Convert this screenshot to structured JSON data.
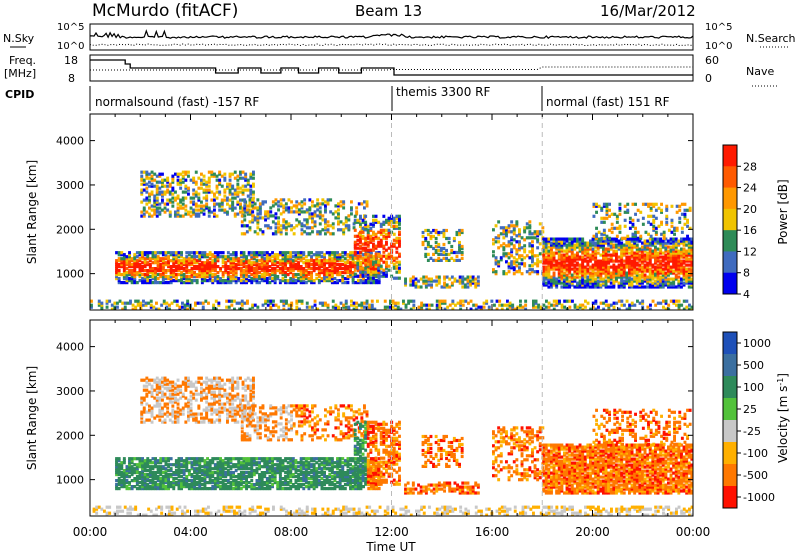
{
  "header": {
    "station": "McMurdo (fitACF)",
    "beam": "Beam 13",
    "date": "16/Mar/2012"
  },
  "panels": {
    "nsky_label": "N.Sky",
    "nsearch_label": "N.Search",
    "nsky_ticks": [
      "10^5",
      "10^0"
    ],
    "nsearch_ticks": [
      "10^5",
      "10^0"
    ],
    "freq_label_1": "Freq.",
    "freq_label_2": "[MHz]",
    "freq_ticks": [
      "18",
      "8"
    ],
    "nave_label": "Nave",
    "nave_ticks": [
      "60",
      "0"
    ],
    "cpid_label": "CPID",
    "cpid_segments": [
      {
        "label": "normalsound (fast) -157 RF",
        "start_hour": 0
      },
      {
        "label": "themis 3300 RF",
        "start_hour": 12
      },
      {
        "label": "normal (fast) 151 RF",
        "start_hour": 18
      }
    ]
  },
  "power_colorbar": {
    "title": "Power [dB]",
    "ticks": [
      "28",
      "24",
      "20",
      "16",
      "12",
      "8",
      "4"
    ],
    "colors": [
      "#ff1a00",
      "#ff5a00",
      "#ff9800",
      "#f0c400",
      "#2e8b57",
      "#3f6bbf",
      "#0000ee"
    ]
  },
  "velocity_colorbar": {
    "title": "Velocity [m s^-1]",
    "ticks": [
      "1000",
      "500",
      "100",
      "25",
      "-25",
      "-100",
      "-500",
      "-1000"
    ],
    "colors": [
      "#1e50b8",
      "#3b6fa0",
      "#2e8a5a",
      "#52c23a",
      "#c8c8c8",
      "#ffb000",
      "#ff7800",
      "#ff1000"
    ]
  },
  "chart_data": [
    {
      "type": "heatmap",
      "title": "",
      "xlabel": "",
      "ylabel": "Slant Range [km]",
      "xlim": [
        0,
        24
      ],
      "ylim": [
        180,
        4600
      ],
      "yticks": [
        1000,
        2000,
        3000,
        4000
      ],
      "colorbar_label": "Power [dB]"
    },
    {
      "type": "heatmap",
      "title": "",
      "xlabel": "Time UT",
      "ylabel": "Slant Range [km]",
      "xlim": [
        0,
        24
      ],
      "ylim": [
        180,
        4600
      ],
      "yticks": [
        1000,
        2000,
        3000,
        4000
      ],
      "xticks": [
        "00:00",
        "04:00",
        "08:00",
        "12:00",
        "16:00",
        "20:00",
        "00:00"
      ],
      "colorbar_label": "Velocity [m s^-1]"
    }
  ]
}
